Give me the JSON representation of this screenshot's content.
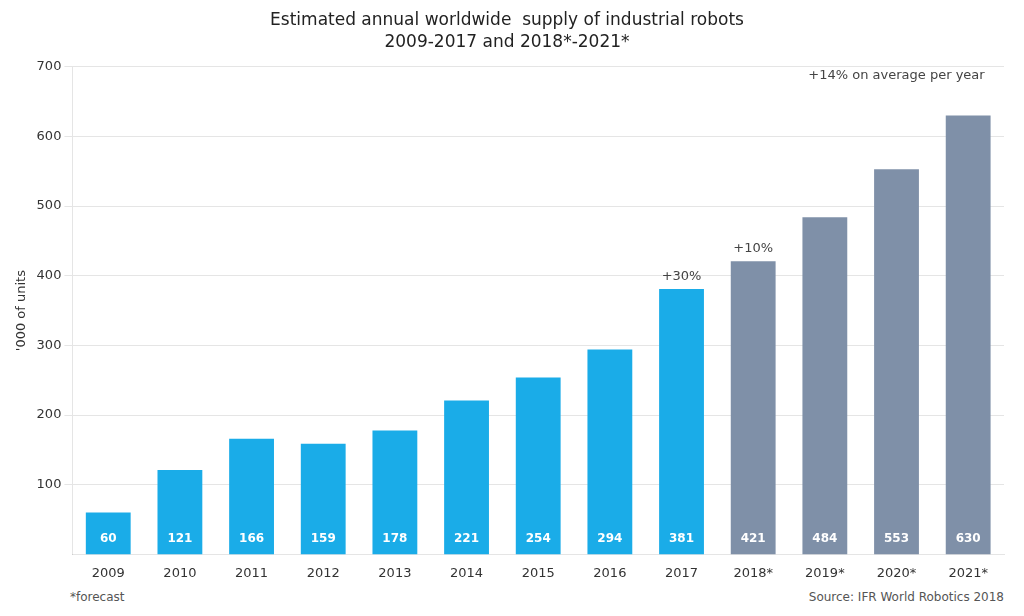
{
  "chart_data": {
    "type": "bar",
    "title": "Estimated annual worldwide  supply of industrial robots",
    "subtitle": "2009-2017 and 2018*-2021*",
    "ylabel": "'000 of units",
    "categories": [
      "2009",
      "2010",
      "2011",
      "2012",
      "2013",
      "2014",
      "2015",
      "2016",
      "2017",
      "2018*",
      "2019*",
      "2020*",
      "2021*"
    ],
    "values": [
      60,
      121,
      166,
      159,
      178,
      221,
      254,
      294,
      381,
      421,
      484,
      553,
      630
    ],
    "colors": [
      "#1AACE8",
      "#1AACE8",
      "#1AACE8",
      "#1AACE8",
      "#1AACE8",
      "#1AACE8",
      "#1AACE8",
      "#1AACE8",
      "#1AACE8",
      "#7F90A8",
      "#7F90A8",
      "#7F90A8",
      "#7F90A8"
    ],
    "ylim": [
      0,
      700
    ],
    "yticks": [
      100,
      200,
      300,
      400,
      500,
      600,
      700
    ],
    "grid": true,
    "data_labels": true,
    "annotations": [
      {
        "text": "+30%",
        "category": "2017"
      },
      {
        "text": "+10%",
        "category": "2018*"
      },
      {
        "text": "+14% on average per year",
        "category": "2020*"
      }
    ],
    "footnotes": [
      "*forecast",
      "Source: IFR World Robotics 2018"
    ]
  }
}
